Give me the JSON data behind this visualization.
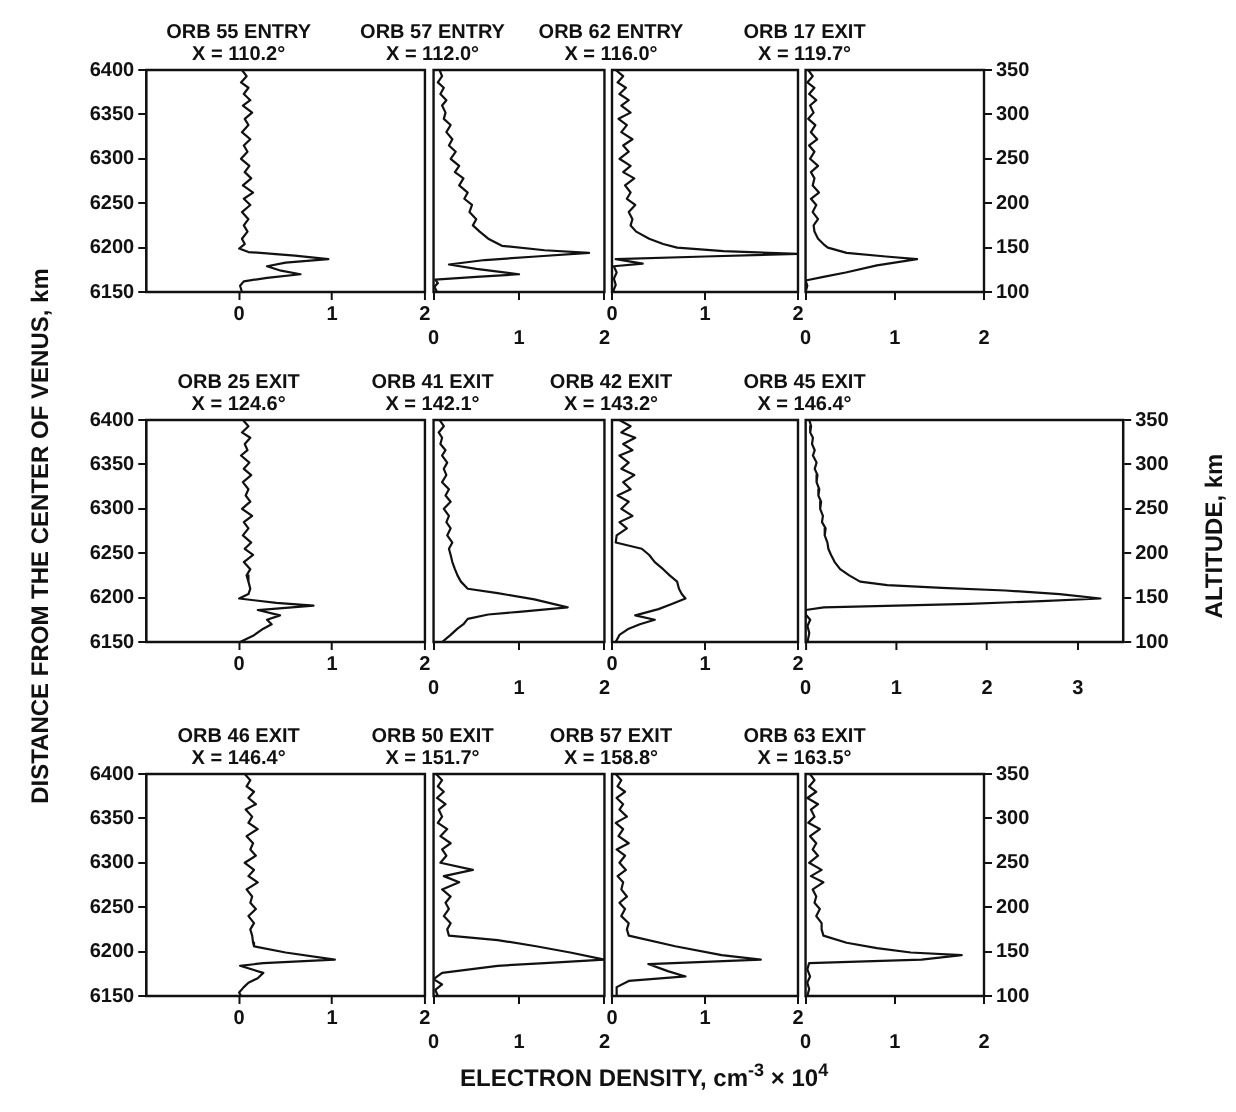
{
  "chart_data": [
    {
      "type": "line",
      "title": "ORB 55 ENTRY",
      "subtitle": "X = 110.2°",
      "color": "#111111",
      "xlim": [
        -1,
        2
      ],
      "xticks": [
        0,
        1,
        2
      ],
      "ylim": [
        6150,
        6400
      ],
      "yticks": [
        6150,
        6200,
        6250,
        6300,
        6350,
        6400
      ],
      "x": [
        0.03,
        0.08,
        0.02,
        0.1,
        0.05,
        0.12,
        0.04,
        0.14,
        0.06,
        0.1,
        0.03,
        0.12,
        0.05,
        0.09,
        0.02,
        0.11,
        0.06,
        0.13,
        0.04,
        0.15,
        0.05,
        0.12,
        0.03,
        0.1,
        0.05,
        0.09,
        0.03,
        0.06,
        0.0,
        0.1,
        0.6,
        0.96,
        0.5,
        0.3,
        0.45,
        0.66,
        0.3,
        0.05,
        0.01,
        0.03
      ],
      "values": [
        6400,
        6393,
        6386,
        6380,
        6373,
        6366,
        6360,
        6352,
        6345,
        6338,
        6330,
        6322,
        6315,
        6308,
        6300,
        6292,
        6285,
        6278,
        6270,
        6262,
        6255,
        6248,
        6240,
        6232,
        6225,
        6218,
        6210,
        6204,
        6199,
        6195,
        6191,
        6187,
        6183,
        6179,
        6174,
        6170,
        6166,
        6162,
        6157,
        6150
      ]
    },
    {
      "type": "line",
      "title": "ORB 57 ENTRY",
      "subtitle": "X = 112.0°",
      "color": "#111111",
      "xlim": [
        0,
        2
      ],
      "xticks": [
        0,
        1,
        2
      ],
      "ylim": [
        6150,
        6400
      ],
      "tick_labels": "x",
      "x": [
        0.07,
        0.1,
        0.05,
        0.12,
        0.08,
        0.15,
        0.1,
        0.14,
        0.12,
        0.2,
        0.15,
        0.22,
        0.18,
        0.26,
        0.2,
        0.3,
        0.25,
        0.35,
        0.3,
        0.4,
        0.36,
        0.45,
        0.42,
        0.5,
        0.46,
        0.54,
        0.64,
        0.8,
        1.3,
        1.82,
        1.2,
        0.6,
        0.18,
        0.5,
        1.0,
        0.5,
        0.02,
        0.05,
        0.01,
        0.04
      ],
      "values": [
        6400,
        6393,
        6386,
        6380,
        6373,
        6366,
        6360,
        6352,
        6345,
        6338,
        6330,
        6322,
        6315,
        6308,
        6300,
        6292,
        6285,
        6278,
        6270,
        6262,
        6255,
        6248,
        6240,
        6232,
        6225,
        6218,
        6210,
        6202,
        6197,
        6194,
        6190,
        6186,
        6181,
        6176,
        6170,
        6167,
        6164,
        6160,
        6156,
        6150
      ]
    },
    {
      "type": "line",
      "title": "ORB 62 ENTRY",
      "subtitle": "X = 116.0°",
      "color": "#111111",
      "xlim": [
        0,
        2
      ],
      "xticks": [
        0,
        1,
        2
      ],
      "ylim": [
        6150,
        6400
      ],
      "tick_labels": "x",
      "x": [
        0.04,
        0.12,
        0.06,
        0.15,
        0.08,
        0.18,
        0.1,
        0.2,
        0.07,
        0.16,
        0.1,
        0.22,
        0.12,
        0.18,
        0.08,
        0.2,
        0.12,
        0.24,
        0.14,
        0.2,
        0.16,
        0.25,
        0.18,
        0.22,
        0.2,
        0.26,
        0.4,
        0.55,
        0.7,
        1.2,
        2.0,
        1.0,
        0.04,
        0.33,
        0.02,
        0.05,
        0.02,
        0.04,
        0.01
      ],
      "values": [
        6400,
        6393,
        6386,
        6380,
        6373,
        6366,
        6360,
        6352,
        6345,
        6338,
        6330,
        6322,
        6315,
        6308,
        6300,
        6292,
        6285,
        6278,
        6270,
        6262,
        6255,
        6248,
        6240,
        6232,
        6225,
        6218,
        6210,
        6204,
        6200,
        6196,
        6193,
        6190,
        6187,
        6182,
        6179,
        6172,
        6165,
        6158,
        6150
      ]
    },
    {
      "type": "line",
      "title": "ORB 17 EXIT",
      "subtitle": "X = 119.7°",
      "color": "#111111",
      "xlim": [
        0,
        2
      ],
      "xticks": [
        0,
        1,
        2
      ],
      "ylim": [
        6150,
        6400
      ],
      "y2lim": [
        100,
        350
      ],
      "y2ticks": [
        100,
        150,
        200,
        250,
        300,
        350
      ],
      "tick_labels": [
        "x",
        "y2"
      ],
      "x": [
        0.03,
        0.08,
        0.02,
        0.1,
        0.04,
        0.12,
        0.05,
        0.09,
        0.03,
        0.11,
        0.06,
        0.13,
        0.04,
        0.1,
        0.05,
        0.14,
        0.06,
        0.1,
        0.08,
        0.15,
        0.06,
        0.12,
        0.08,
        0.14,
        0.09,
        0.1,
        0.14,
        0.2,
        0.25,
        0.46,
        0.9,
        1.25,
        0.8,
        0.45,
        0.2,
        0.0,
        0.02,
        0.0
      ],
      "values": [
        6400,
        6393,
        6386,
        6380,
        6373,
        6366,
        6360,
        6352,
        6345,
        6338,
        6330,
        6322,
        6315,
        6308,
        6300,
        6292,
        6285,
        6278,
        6270,
        6262,
        6255,
        6248,
        6240,
        6232,
        6225,
        6218,
        6210,
        6204,
        6200,
        6194,
        6190,
        6187,
        6180,
        6172,
        6167,
        6163,
        6157,
        6150
      ]
    },
    {
      "type": "line",
      "title": "ORB 25 EXIT",
      "subtitle": "X = 124.6°",
      "color": "#111111",
      "xlim": [
        -1,
        2
      ],
      "xticks": [
        0,
        1,
        2
      ],
      "ylim": [
        6150,
        6400
      ],
      "yticks": [
        6150,
        6200,
        6250,
        6300,
        6350,
        6400
      ],
      "ylabel": "DISTANCE FROM THE CENTER OF VENUS,  km",
      "x": [
        0.04,
        0.1,
        0.03,
        0.12,
        0.06,
        0.09,
        0.02,
        0.11,
        0.05,
        0.13,
        0.04,
        0.1,
        0.07,
        0.12,
        0.03,
        0.14,
        0.05,
        0.1,
        0.04,
        0.13,
        0.06,
        0.15,
        0.05,
        0.12,
        0.08,
        0.1,
        0.12,
        0.1,
        0.0,
        0.4,
        0.8,
        0.2,
        0.44,
        0.3,
        0.35,
        0.26,
        0.15,
        0.01
      ],
      "values": [
        6400,
        6393,
        6386,
        6380,
        6373,
        6366,
        6360,
        6352,
        6345,
        6338,
        6330,
        6322,
        6315,
        6308,
        6300,
        6292,
        6285,
        6278,
        6270,
        6262,
        6255,
        6248,
        6240,
        6232,
        6225,
        6218,
        6210,
        6204,
        6199,
        6194,
        6191,
        6186,
        6180,
        6175,
        6170,
        6165,
        6157,
        6150
      ]
    },
    {
      "type": "line",
      "title": "ORB 41 EXIT",
      "subtitle": "X = 142.1°",
      "color": "#111111",
      "xlim": [
        0,
        2
      ],
      "xticks": [
        0,
        1,
        2
      ],
      "ylim": [
        6150,
        6400
      ],
      "tick_labels": "x",
      "x": [
        0.07,
        0.12,
        0.06,
        0.1,
        0.08,
        0.14,
        0.1,
        0.16,
        0.12,
        0.15,
        0.1,
        0.18,
        0.14,
        0.2,
        0.12,
        0.18,
        0.15,
        0.2,
        0.16,
        0.22,
        0.18,
        0.2,
        0.22,
        0.25,
        0.28,
        0.32,
        0.4,
        0.75,
        1.18,
        1.57,
        1.0,
        0.64,
        0.4,
        0.35,
        0.28,
        0.2,
        0.1
      ],
      "values": [
        6400,
        6393,
        6386,
        6380,
        6373,
        6366,
        6360,
        6352,
        6345,
        6338,
        6330,
        6322,
        6315,
        6308,
        6300,
        6292,
        6285,
        6278,
        6270,
        6262,
        6255,
        6248,
        6240,
        6232,
        6225,
        6218,
        6210,
        6205,
        6198,
        6189,
        6184,
        6181,
        6176,
        6170,
        6165,
        6158,
        6150
      ]
    },
    {
      "type": "line",
      "title": "ORB 42 EXIT",
      "subtitle": "X = 143.2°",
      "color": "#111111",
      "xlim": [
        0,
        2
      ],
      "xticks": [
        0,
        1,
        2
      ],
      "ylim": [
        6150,
        6400
      ],
      "tick_labels": "x",
      "x": [
        0.08,
        0.2,
        0.1,
        0.25,
        0.12,
        0.22,
        0.08,
        0.18,
        0.1,
        0.24,
        0.12,
        0.2,
        0.06,
        0.18,
        0.1,
        0.22,
        0.08,
        0.16,
        0.05,
        0.04,
        0.32,
        0.4,
        0.46,
        0.55,
        0.62,
        0.7,
        0.72,
        0.75,
        0.79,
        0.65,
        0.5,
        0.25,
        0.46,
        0.3,
        0.18,
        0.08,
        0.04
      ],
      "values": [
        6400,
        6393,
        6386,
        6380,
        6373,
        6366,
        6360,
        6352,
        6345,
        6338,
        6330,
        6322,
        6315,
        6308,
        6300,
        6292,
        6285,
        6278,
        6270,
        6262,
        6255,
        6248,
        6240,
        6232,
        6225,
        6218,
        6210,
        6204,
        6199,
        6193,
        6187,
        6180,
        6175,
        6170,
        6165,
        6158,
        6150
      ]
    },
    {
      "type": "line",
      "title": "ORB 45 EXIT",
      "subtitle": "X = 146.4°",
      "color": "#111111",
      "xlim": [
        0,
        3.5
      ],
      "xticks": [
        0,
        1,
        2,
        3
      ],
      "ylim": [
        6150,
        6400
      ],
      "y2lim": [
        100,
        350
      ],
      "y2ticks": [
        100,
        150,
        200,
        250,
        300,
        350
      ],
      "tick_labels": [
        "x",
        "y2"
      ],
      "y2label": "ALTITUDE,  km",
      "x": [
        0.04,
        0.06,
        0.05,
        0.08,
        0.07,
        0.1,
        0.08,
        0.12,
        0.1,
        0.13,
        0.12,
        0.15,
        0.14,
        0.17,
        0.16,
        0.19,
        0.18,
        0.22,
        0.21,
        0.24,
        0.25,
        0.28,
        0.32,
        0.38,
        0.48,
        0.6,
        0.9,
        1.5,
        2.2,
        2.8,
        3.25,
        2.6,
        1.8,
        1.0,
        0.2,
        0.0,
        0.0,
        0.05,
        0.02,
        0.04,
        0.02
      ],
      "values": [
        6400,
        6393,
        6386,
        6380,
        6373,
        6366,
        6360,
        6352,
        6345,
        6338,
        6330,
        6322,
        6315,
        6308,
        6300,
        6292,
        6285,
        6278,
        6270,
        6262,
        6255,
        6248,
        6240,
        6232,
        6225,
        6218,
        6214,
        6211,
        6208,
        6204,
        6199,
        6196,
        6193,
        6191,
        6189,
        6186,
        6181,
        6175,
        6168,
        6160,
        6150
      ]
    },
    {
      "type": "line",
      "title": "ORB 46 EXIT",
      "subtitle": "X = 146.4°",
      "color": "#111111",
      "xlim": [
        -1,
        2
      ],
      "xticks": [
        0,
        1,
        2
      ],
      "ylim": [
        6150,
        6400
      ],
      "yticks": [
        6150,
        6200,
        6250,
        6300,
        6350,
        6400
      ],
      "x": [
        0.06,
        0.12,
        0.08,
        0.16,
        0.1,
        0.18,
        0.07,
        0.14,
        0.1,
        0.2,
        0.08,
        0.15,
        0.12,
        0.18,
        0.06,
        0.16,
        0.1,
        0.2,
        0.08,
        0.14,
        0.12,
        0.18,
        0.1,
        0.16,
        0.12,
        0.14,
        0.15,
        0.16,
        0.5,
        1.03,
        0.26,
        0.01,
        0.26,
        0.2,
        0.1,
        0.05,
        0.0,
        0.02
      ],
      "values": [
        6400,
        6393,
        6386,
        6380,
        6373,
        6366,
        6360,
        6352,
        6345,
        6338,
        6330,
        6322,
        6315,
        6308,
        6300,
        6292,
        6285,
        6278,
        6270,
        6262,
        6255,
        6248,
        6240,
        6232,
        6225,
        6218,
        6210,
        6206,
        6199,
        6191,
        6187,
        6184,
        6176,
        6170,
        6165,
        6160,
        6154,
        6150
      ]
    },
    {
      "type": "line",
      "title": "ORB 50 EXIT",
      "subtitle": "X = 151.7°",
      "color": "#111111",
      "xlim": [
        0,
        2
      ],
      "xticks": [
        0,
        1,
        2
      ],
      "ylim": [
        6150,
        6400
      ],
      "tick_labels": "x",
      "xlabel": "ELECTRON DENSITY, cm$^{-3}$  ×  10$^{4}$",
      "x": [
        0.03,
        0.1,
        0.05,
        0.12,
        0.04,
        0.14,
        0.06,
        0.1,
        0.05,
        0.16,
        0.08,
        0.2,
        0.1,
        0.15,
        0.08,
        0.46,
        0.12,
        0.3,
        0.1,
        0.2,
        0.14,
        0.18,
        0.12,
        0.2,
        0.16,
        0.18,
        0.75,
        1.2,
        1.6,
        2.0,
        1.3,
        0.75,
        0.1,
        0.0,
        0.1,
        0.02,
        0.05
      ],
      "values": [
        6400,
        6393,
        6386,
        6380,
        6373,
        6366,
        6360,
        6352,
        6345,
        6338,
        6330,
        6322,
        6315,
        6308,
        6300,
        6292,
        6285,
        6278,
        6270,
        6262,
        6255,
        6248,
        6240,
        6232,
        6225,
        6218,
        6213,
        6206,
        6199,
        6191,
        6187,
        6184,
        6176,
        6169,
        6163,
        6157,
        6150
      ]
    },
    {
      "type": "line",
      "title": "ORB 57 EXIT",
      "subtitle": "X = 158.8°",
      "color": "#111111",
      "xlim": [
        0,
        2
      ],
      "xticks": [
        0,
        1,
        2
      ],
      "ylim": [
        6150,
        6400
      ],
      "tick_labels": "x",
      "x": [
        0.04,
        0.1,
        0.06,
        0.14,
        0.05,
        0.12,
        0.08,
        0.16,
        0.04,
        0.12,
        0.07,
        0.18,
        0.05,
        0.14,
        0.08,
        0.15,
        0.06,
        0.12,
        0.1,
        0.16,
        0.08,
        0.14,
        0.1,
        0.18,
        0.16,
        0.18,
        0.68,
        1.18,
        1.6,
        0.39,
        0.6,
        0.79,
        0.18,
        0.05,
        0.05
      ],
      "values": [
        6400,
        6393,
        6386,
        6380,
        6373,
        6366,
        6360,
        6352,
        6345,
        6338,
        6330,
        6322,
        6315,
        6308,
        6300,
        6292,
        6285,
        6278,
        6270,
        6262,
        6255,
        6248,
        6240,
        6232,
        6225,
        6218,
        6206,
        6196,
        6191,
        6186,
        6178,
        6172,
        6167,
        6160,
        6150
      ]
    },
    {
      "type": "line",
      "title": "ORB 63 EXIT",
      "subtitle": "X = 163.5°",
      "color": "#111111",
      "xlim": [
        0,
        2
      ],
      "xticks": [
        0,
        1,
        2
      ],
      "ylim": [
        6150,
        6400
      ],
      "y2lim": [
        100,
        350
      ],
      "y2ticks": [
        100,
        150,
        200,
        250,
        300,
        350
      ],
      "tick_labels": [
        "x",
        "y2"
      ],
      "x": [
        0.05,
        0.1,
        0.04,
        0.12,
        0.02,
        0.14,
        0.06,
        0.1,
        0.03,
        0.16,
        0.05,
        0.12,
        0.08,
        0.14,
        0.04,
        0.18,
        0.06,
        0.2,
        0.08,
        0.12,
        0.1,
        0.16,
        0.12,
        0.18,
        0.18,
        0.2,
        0.46,
        0.8,
        1.18,
        1.75,
        1.3,
        0.04,
        0.02,
        0.05,
        0.02,
        0.04,
        0.02
      ],
      "values": [
        6400,
        6393,
        6386,
        6380,
        6373,
        6366,
        6360,
        6352,
        6345,
        6338,
        6330,
        6322,
        6315,
        6308,
        6300,
        6292,
        6285,
        6278,
        6270,
        6262,
        6255,
        6248,
        6240,
        6232,
        6225,
        6218,
        6210,
        6204,
        6199,
        6196,
        6191,
        6187,
        6180,
        6172,
        6165,
        6158,
        6150
      ]
    }
  ]
}
